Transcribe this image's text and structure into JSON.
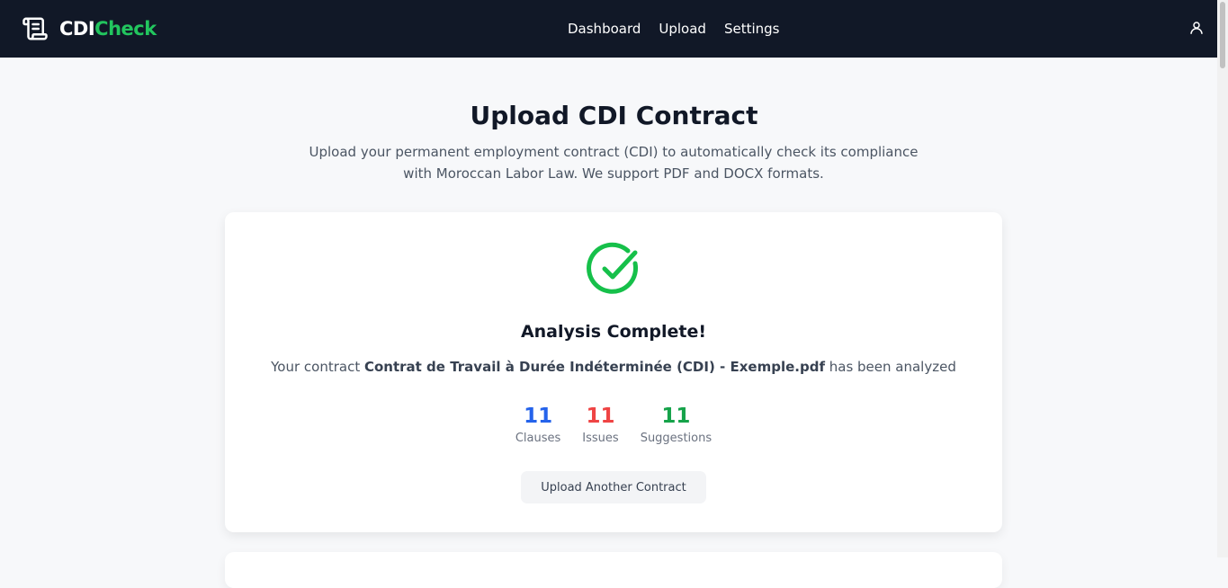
{
  "nav": {
    "brand_a": "CDI",
    "brand_b": "Check",
    "links": [
      "Dashboard",
      "Upload",
      "Settings"
    ]
  },
  "page": {
    "title": "Upload CDI Contract",
    "subtitle": "Upload your permanent employment contract (CDI) to automatically check its compliance with Moroccan Labor Law. We support PDF and DOCX formats."
  },
  "result": {
    "title": "Analysis Complete!",
    "msg_pre": "Your contract ",
    "filename": "Contrat de Travail à Durée Indéterminée (CDI) - Exemple.pdf",
    "msg_post": " has been analyzed",
    "stats": [
      {
        "value": "11",
        "label": "Clauses",
        "color": "#2563eb"
      },
      {
        "value": "11",
        "label": "Issues",
        "color": "#ef4444"
      },
      {
        "value": "11",
        "label": "Suggestions",
        "color": "#16a34a"
      }
    ],
    "button": "Upload Another Contract"
  },
  "colors": {
    "accent": "#22c55e",
    "nav_bg": "#111827"
  }
}
